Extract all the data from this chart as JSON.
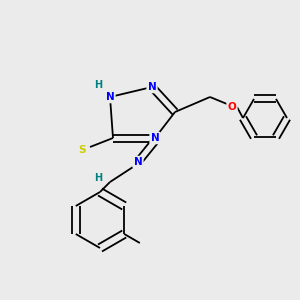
{
  "bg_color": "#ebebeb",
  "atom_colors": {
    "N": "#0000ff",
    "H": "#008080",
    "O": "#ff0000",
    "S": "#cccc00",
    "C": "#000000"
  },
  "bond_color": "#000000",
  "figure_size": [
    3.0,
    3.0
  ],
  "dpi": 100,
  "lw": 1.3,
  "fs": 7.5
}
